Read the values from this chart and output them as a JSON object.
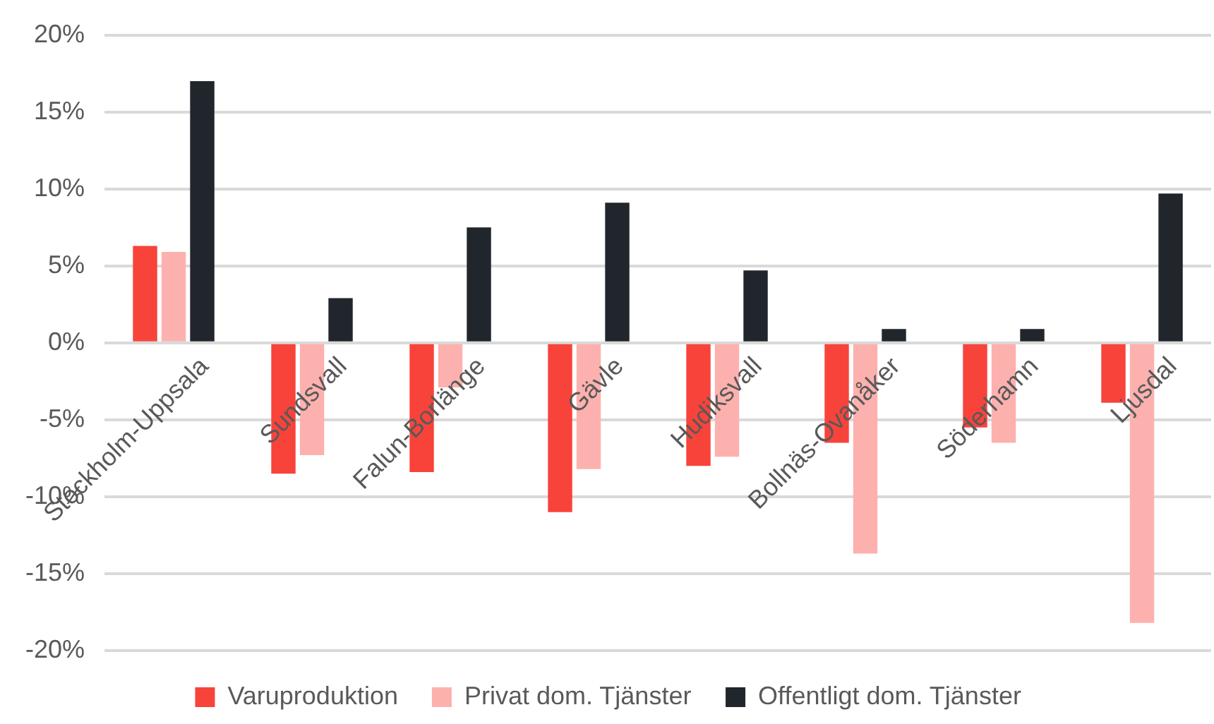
{
  "chart_data": {
    "type": "bar",
    "categories": [
      "Stockholm-Uppsala",
      "Sundsvall",
      "Falun-Borlänge",
      "Gävle",
      "Hudiksvall",
      "Bollnäs-Ovanåker",
      "Söderhamn",
      "Ljusdal"
    ],
    "series": [
      {
        "name": "Varuproduktion",
        "color": "#f8433b",
        "values": [
          6.3,
          -8.5,
          -8.4,
          -11.0,
          -8.0,
          -6.5,
          -5.5,
          -3.9
        ]
      },
      {
        "name": "Privat dom. Tjänster",
        "color": "#fdb1ae",
        "values": [
          5.9,
          -7.3,
          -2.9,
          -8.2,
          -7.4,
          -13.7,
          -6.5,
          -18.2
        ]
      },
      {
        "name": "Offentligt dom. Tjänster",
        "color": "#21262d",
        "values": [
          17.0,
          2.9,
          7.5,
          9.1,
          4.7,
          0.9,
          0.9,
          9.7
        ]
      }
    ],
    "ylim": [
      -20,
      20
    ],
    "yticks": [
      {
        "value": -20,
        "label": "-20%"
      },
      {
        "value": -15,
        "label": "-15%"
      },
      {
        "value": -10,
        "label": "-10%"
      },
      {
        "value": -5,
        "label": "-5%"
      },
      {
        "value": 0,
        "label": "0%"
      },
      {
        "value": 5,
        "label": "5%"
      },
      {
        "value": 10,
        "label": "10%"
      },
      {
        "value": 15,
        "label": "15%"
      },
      {
        "value": 20,
        "label": "20%"
      }
    ],
    "grid": "y",
    "legend": "bottom"
  }
}
